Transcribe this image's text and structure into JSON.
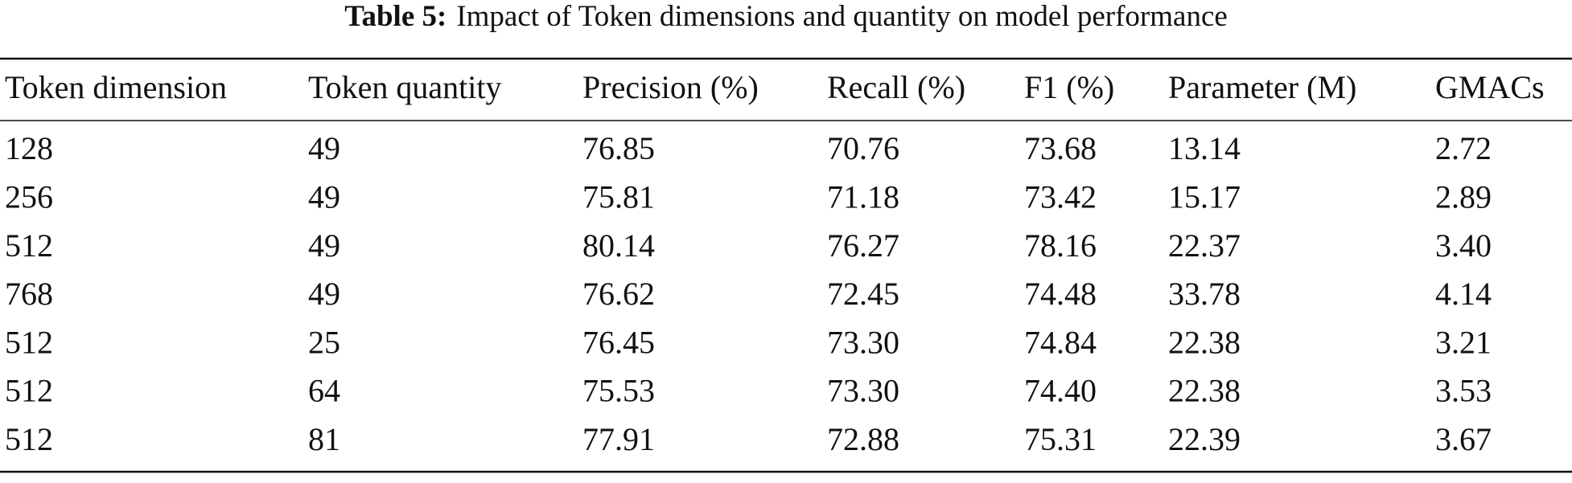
{
  "title": {
    "label": "Table 5:",
    "text": "Impact of Token dimensions and quantity on model performance"
  },
  "table": {
    "header": [
      "Token dimension",
      "Token quantity",
      "Precision (%)",
      "Recall (%)",
      "F1 (%)",
      "Parameter (M)",
      "GMACs"
    ],
    "rows": [
      [
        "128",
        "49",
        "76.85",
        "70.76",
        "73.68",
        "13.14",
        "2.72"
      ],
      [
        "256",
        "49",
        "75.81",
        "71.18",
        "73.42",
        "15.17",
        "2.89"
      ],
      [
        "512",
        "49",
        "80.14",
        "76.27",
        "78.16",
        "22.37",
        "3.40"
      ],
      [
        "768",
        "49",
        "76.62",
        "72.45",
        "74.48",
        "33.78",
        "4.14"
      ],
      [
        "512",
        "25",
        "76.45",
        "73.30",
        "74.84",
        "22.38",
        "3.21"
      ],
      [
        "512",
        "64",
        "75.53",
        "73.30",
        "74.40",
        "22.38",
        "3.53"
      ],
      [
        "512",
        "81",
        "77.91",
        "72.88",
        "75.31",
        "22.39",
        "3.67"
      ]
    ]
  }
}
